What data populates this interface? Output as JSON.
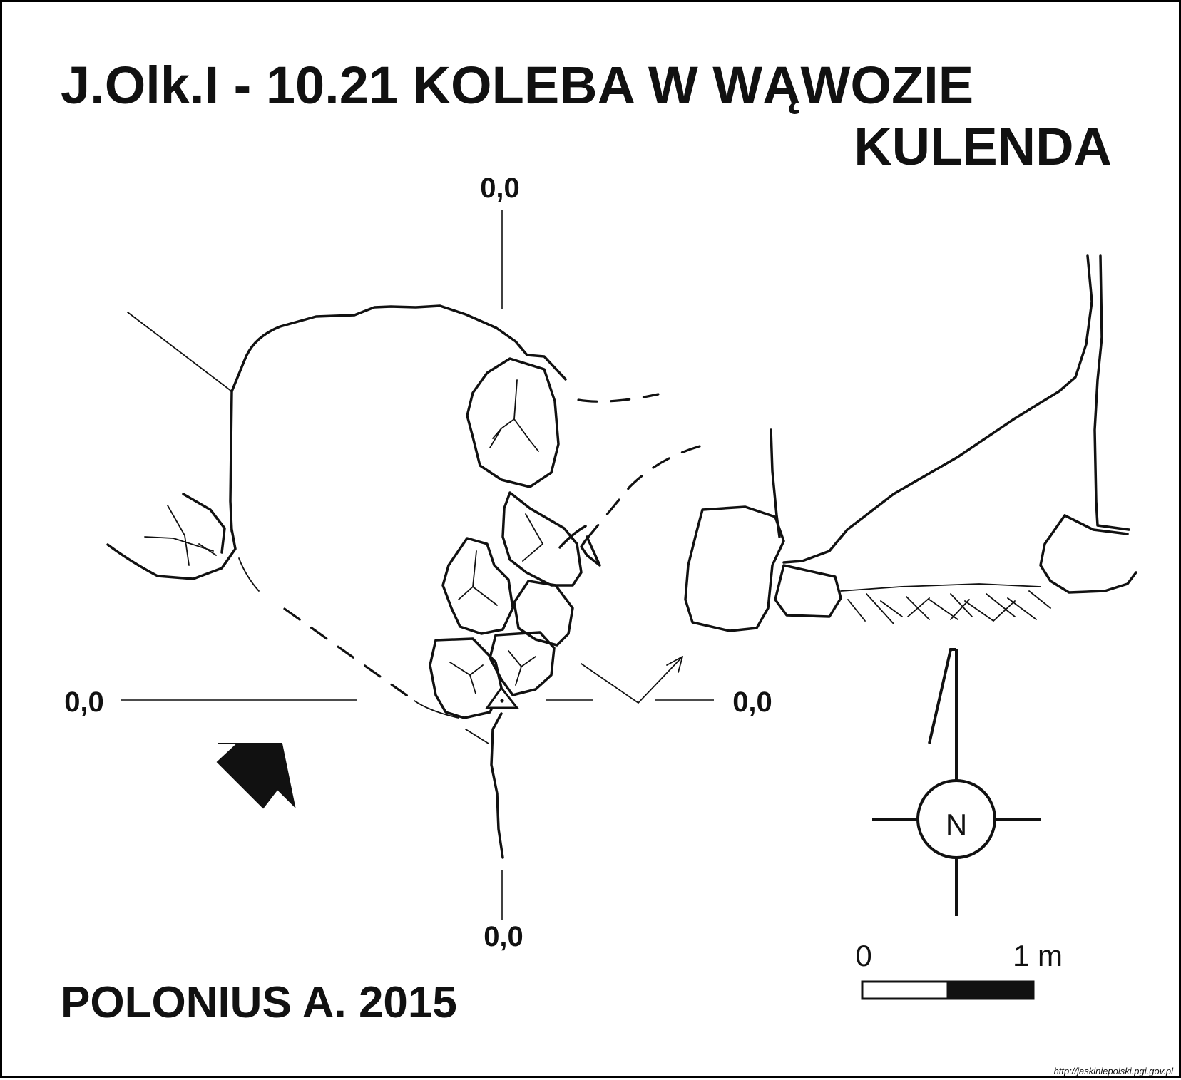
{
  "title": {
    "line1": "J.Olk.I - 10.21  KOLEBA W WĄWOZIE",
    "line2": "KULENDA"
  },
  "datum_labels": {
    "top": "0,0",
    "left": "0,0",
    "right": "0,0",
    "bottom": "0,0"
  },
  "author": "POLONIUS A. 2015",
  "north_arrow": {
    "letter": "N"
  },
  "scale_bar": {
    "start_label": "0",
    "end_label": "1 m",
    "length_m": 1
  },
  "source_url": "http://jaskiniepolski.pgi.gov.pl",
  "icons": {
    "entrance": "entrance-arrow-icon",
    "survey_station": "survey-station-triangle-icon",
    "north": "north-compass-icon"
  },
  "colors": {
    "ink": "#111111",
    "paper": "#ffffff"
  }
}
